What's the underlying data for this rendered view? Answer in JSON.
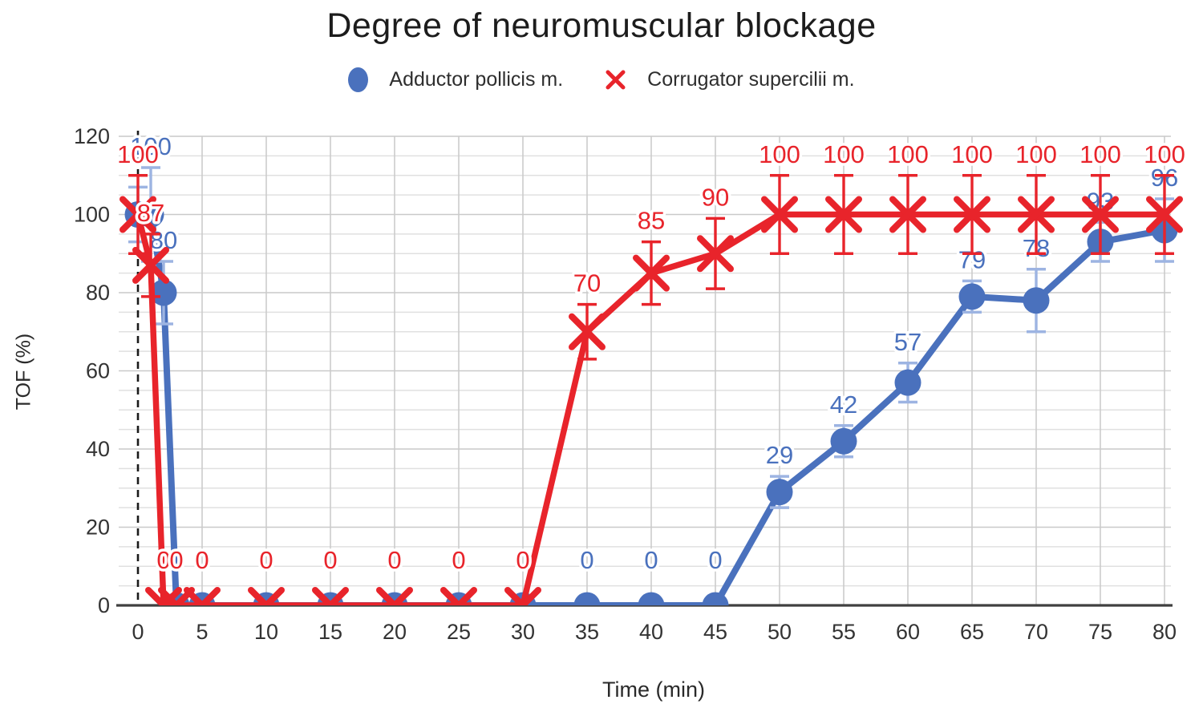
{
  "title": "Degree of neuromuscular blockage",
  "axes": {
    "x_label": "Time (min)",
    "y_label": "TOF (%)"
  },
  "legend": {
    "items": [
      {
        "label": "Adductor pollicis m.",
        "marker": "circle",
        "color": "#4a71bd"
      },
      {
        "label": "Corrugator supercilii m.",
        "marker": "x",
        "color": "#e8242b"
      }
    ]
  },
  "colors": {
    "blue_series": "#4a71bd",
    "blue_error": "#9db4e2",
    "red_series": "#e8242b",
    "grid_minor": "#e0e0e0",
    "grid_major": "#c9c9c9",
    "grid_vertical": "#cbcbcb",
    "axis_line": "#404040",
    "tick_text": "#333333",
    "reference_line": "#1a1a1a"
  },
  "chart_data": {
    "type": "line",
    "title": "Degree of neuromuscular blockage",
    "xlabel": "Time (min)",
    "ylabel": "TOF (%)",
    "xlim": [
      -1.5,
      80.5
    ],
    "ylim": [
      0,
      120
    ],
    "x_ticks": [
      0,
      5,
      10,
      15,
      20,
      25,
      30,
      35,
      40,
      45,
      50,
      55,
      60,
      65,
      70,
      75,
      80
    ],
    "y_ticks": [
      0,
      20,
      40,
      60,
      80,
      100,
      120
    ],
    "y_minor_step": 5,
    "grid": "on",
    "legend_position": "top",
    "reference_line": {
      "x": 0,
      "style": "dashed"
    },
    "series": [
      {
        "name": "Adductor pollicis m.",
        "marker": "circle",
        "color": "#4a71bd",
        "error_color": "#9db4e2",
        "x": [
          0,
          1,
          2,
          3,
          5,
          10,
          15,
          20,
          25,
          30,
          35,
          40,
          45,
          50,
          55,
          60,
          65,
          70,
          75,
          80
        ],
        "y": [
          100,
          100,
          80,
          0,
          0,
          0,
          0,
          0,
          0,
          0,
          0,
          0,
          0,
          29,
          42,
          57,
          79,
          78,
          93,
          96
        ],
        "err": [
          7,
          12,
          8,
          0,
          0,
          0,
          0,
          0,
          0,
          0,
          0,
          0,
          0,
          4,
          4,
          5,
          4,
          8,
          5,
          8
        ],
        "labels": [
          null,
          "100",
          "80",
          null,
          null,
          null,
          null,
          null,
          null,
          null,
          "0",
          "0",
          "0",
          "29",
          "42",
          "57",
          "79",
          "78",
          "93",
          "96"
        ]
      },
      {
        "name": "Corrugator supercilii m.",
        "marker": "x",
        "color": "#e8242b",
        "error_color": "#e8242b",
        "x": [
          0,
          1,
          2,
          3,
          5,
          10,
          15,
          20,
          25,
          30,
          35,
          40,
          45,
          50,
          55,
          60,
          65,
          70,
          75,
          80
        ],
        "y": [
          100,
          87,
          0,
          0,
          0,
          0,
          0,
          0,
          0,
          0,
          70,
          85,
          90,
          100,
          100,
          100,
          100,
          100,
          100,
          100
        ],
        "err": [
          10,
          8,
          0,
          0,
          0,
          0,
          0,
          0,
          0,
          0,
          7,
          8,
          9,
          10,
          10,
          10,
          10,
          10,
          10,
          10
        ],
        "labels": [
          "100",
          "87",
          "0",
          "0",
          "0",
          "0",
          "0",
          "0",
          "0",
          "0",
          "70",
          "85",
          "90",
          "100",
          "100",
          "100",
          "100",
          "100",
          "100",
          "100"
        ]
      }
    ]
  }
}
